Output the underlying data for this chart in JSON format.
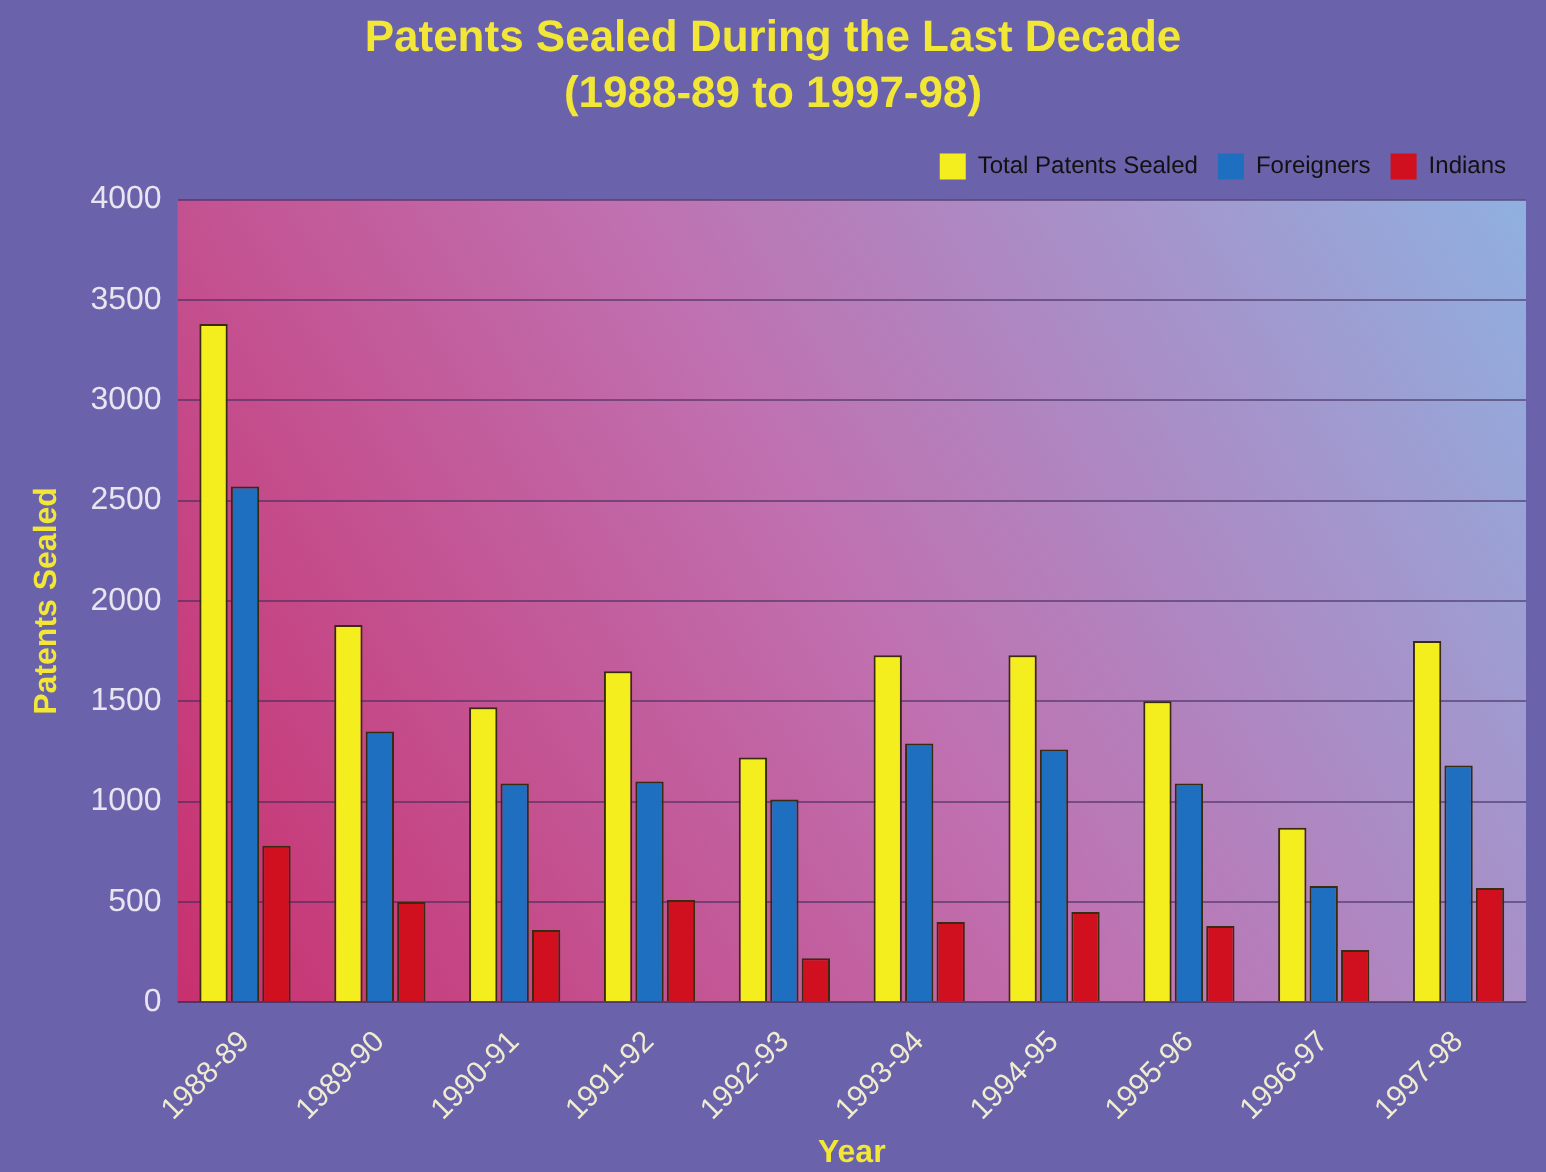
{
  "chart_data": {
    "type": "bar",
    "title": "Patents Sealed During the Last Decade",
    "subtitle": "(1988-89 to 1997-98)",
    "xlabel": "Year",
    "ylabel": "Patents Sealed",
    "categories": [
      "1988-89",
      "1989-90",
      "1990-91",
      "1991-92",
      "1992-93",
      "1993-94",
      "1994-95",
      "1995-96",
      "1996-97",
      "1997-98"
    ],
    "series": [
      {
        "name": "Total Patents Sealed",
        "color": "#f5ee1e",
        "values": [
          3380,
          1880,
          1470,
          1650,
          1220,
          1730,
          1730,
          1500,
          870,
          1800
        ]
      },
      {
        "name": "Foreigners",
        "color": "#1f6fc0",
        "values": [
          2570,
          1350,
          1090,
          1100,
          1010,
          1290,
          1260,
          1090,
          580,
          1180
        ]
      },
      {
        "name": "Indians",
        "color": "#d0101e",
        "values": [
          780,
          500,
          360,
          510,
          220,
          400,
          450,
          380,
          260,
          570
        ]
      }
    ],
    "ylim": [
      0,
      4000
    ],
    "yticks": [
      0,
      500,
      1000,
      1500,
      2000,
      2500,
      3000,
      3500,
      4000
    ],
    "grid": "y",
    "legend": "top right"
  }
}
